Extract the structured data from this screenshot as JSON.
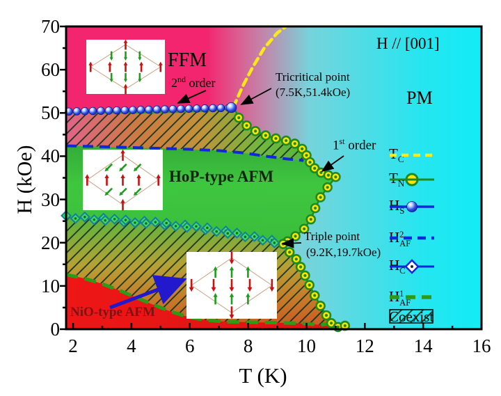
{
  "figure": {
    "title_hidden": ""
  },
  "axes": {
    "xlabel": "T (K)",
    "ylabel": "H (kOe)",
    "x_ticks": [
      "2",
      "4",
      "6",
      "8",
      "10",
      "12",
      "14",
      "16"
    ],
    "y_ticks": [
      "70",
      "60",
      "50",
      "40",
      "30",
      "20",
      "10",
      "0"
    ],
    "x_range": [
      1.76,
      16
    ],
    "y_range": [
      0,
      70
    ]
  },
  "labels": {
    "field_direction": "H // [001]",
    "ffm": "FFM",
    "pm": "PM",
    "hop": "HoP-type AFM",
    "nio": "NiO-type AFM",
    "order2_num": "2",
    "order2_sup": "nd",
    "order2_rest": " order",
    "order1_num": "1",
    "order1_sup": "st",
    "order1_rest": " order"
  },
  "annotations": {
    "tricritical": {
      "line1": "Tricritical point",
      "line2": "(7.5K,51.4kOe)",
      "point_T_K": 7.5,
      "point_H_kOe": 51.4
    },
    "triple": {
      "line1": "Triple point",
      "line2": "(9.2K,19.7kOe)",
      "point_T_K": 9.2,
      "point_H_kOe": 19.7
    }
  },
  "legend": {
    "items": [
      {
        "id": "tc",
        "main": "T",
        "sub": "C",
        "sup": ""
      },
      {
        "id": "tn",
        "main": "T",
        "sub": "N",
        "sup": ""
      },
      {
        "id": "hs",
        "main": "H",
        "sub": "S",
        "sup": ""
      },
      {
        "id": "haf2",
        "main": "H",
        "sub": "AF",
        "sup": "2"
      },
      {
        "id": "hc",
        "main": "H",
        "sub": "C",
        "sup": ""
      },
      {
        "id": "haf1",
        "main": "H",
        "sub": "AF",
        "sup": "1"
      },
      {
        "id": "coexist",
        "main": "Coexist",
        "sub": "",
        "sup": ""
      }
    ]
  },
  "colors": {
    "ffm_pink": "#f2256e",
    "pm_cyan": "#14ecf6",
    "hop_green": "#3fc63f",
    "nio_red": "#ee1515",
    "tc_yellow": "#ffe81a",
    "blue_line": "#1126dd",
    "tn_green": "#1f8a1f",
    "haf1_green": "#2f9a18",
    "marker_yellow": "#ffe400",
    "diamond_green": "#3fdf5a"
  },
  "chart_data": {
    "type": "line",
    "title": "Magnetic phase diagram, H // [001]",
    "xlabel": "T (K)",
    "ylabel": "H (kOe)",
    "xlim": [
      1.76,
      16
    ],
    "ylim": [
      0,
      70
    ],
    "grid": false,
    "legend_position": "right",
    "phases": [
      "FFM",
      "PM",
      "HoP-type AFM",
      "NiO-type AFM",
      "Coexist (hatched)"
    ],
    "series": [
      {
        "name": "H_S",
        "style": "blue line, sphere markers",
        "points": [
          [
            1.76,
            50.3
          ],
          [
            3,
            50.3
          ],
          [
            4.5,
            50.3
          ],
          [
            5.5,
            50.4
          ],
          [
            6.3,
            50.6
          ],
          [
            6.9,
            50.8
          ],
          [
            7.5,
            51.4
          ]
        ]
      },
      {
        "name": "T_C",
        "style": "yellow dashed",
        "points": [
          [
            7.5,
            51.4
          ],
          [
            7.8,
            56
          ],
          [
            8.15,
            60.5
          ],
          [
            8.55,
            65
          ],
          [
            9.0,
            68.5
          ],
          [
            9.3,
            70
          ]
        ]
      },
      {
        "name": "H_AF2",
        "style": "blue dashed",
        "points": [
          [
            1.76,
            42.4
          ],
          [
            3,
            42.2
          ],
          [
            4,
            42.0
          ],
          [
            5,
            41.8
          ],
          [
            6,
            41.6
          ],
          [
            7,
            41.3
          ],
          [
            7.8,
            40.8
          ],
          [
            8.6,
            40.0
          ],
          [
            9.3,
            39.4
          ],
          [
            9.9,
            39.0
          ]
        ]
      },
      {
        "name": "T_N_upper",
        "style": "green line, yellow circle markers",
        "points": [
          [
            7.5,
            51.4
          ],
          [
            7.68,
            48.9
          ],
          [
            7.95,
            47.1
          ],
          [
            8.25,
            45.8
          ],
          [
            8.6,
            44.8
          ],
          [
            8.95,
            44.1
          ],
          [
            9.3,
            43.6
          ],
          [
            9.6,
            42.9
          ],
          [
            9.85,
            41.7
          ],
          [
            10.0,
            40.2
          ],
          [
            10.12,
            38.6
          ],
          [
            10.28,
            37.2
          ],
          [
            10.5,
            36.2
          ],
          [
            10.75,
            35.6
          ],
          [
            11.0,
            35.2
          ],
          [
            10.72,
            32.8
          ],
          [
            10.48,
            30.5
          ],
          [
            10.3,
            28.0
          ],
          [
            10.15,
            25.4
          ],
          [
            9.92,
            23.2
          ],
          [
            9.62,
            21.5
          ],
          [
            9.35,
            20.3
          ],
          [
            9.2,
            19.7
          ]
        ]
      },
      {
        "name": "T_N_lower",
        "style": "green line, yellow circle markers",
        "points": [
          [
            9.2,
            19.7
          ],
          [
            9.42,
            17.8
          ],
          [
            9.65,
            16.2
          ],
          [
            9.8,
            14.4
          ],
          [
            9.95,
            12.4
          ],
          [
            10.1,
            10.2
          ],
          [
            10.28,
            7.8
          ],
          [
            10.48,
            5.4
          ],
          [
            10.68,
            3.2
          ],
          [
            10.85,
            1.4
          ],
          [
            11.08,
            0.5
          ],
          [
            11.32,
            0.8
          ]
        ]
      },
      {
        "name": "H_C",
        "style": "green diamond markers",
        "points": [
          [
            1.76,
            26.0
          ],
          [
            2.4,
            25.7
          ],
          [
            3.1,
            25.4
          ],
          [
            3.8,
            25.0
          ],
          [
            4.5,
            24.7
          ],
          [
            5.2,
            24.3
          ],
          [
            5.9,
            23.8
          ],
          [
            6.6,
            23.2
          ],
          [
            7.3,
            22.4
          ],
          [
            7.9,
            21.6
          ],
          [
            8.5,
            20.8
          ],
          [
            8.9,
            20.2
          ],
          [
            9.2,
            19.7
          ]
        ]
      },
      {
        "name": "H_AF1",
        "style": "green dashed",
        "points": [
          [
            1.76,
            12.6
          ],
          [
            2.3,
            11.9
          ],
          [
            2.9,
            10.7
          ],
          [
            3.5,
            9.2
          ],
          [
            4.1,
            7.5
          ],
          [
            4.7,
            5.8
          ],
          [
            5.3,
            4.2
          ],
          [
            5.9,
            2.9
          ],
          [
            6.5,
            2.1
          ],
          [
            7.3,
            1.7
          ],
          [
            8.2,
            1.6
          ],
          [
            9.1,
            1.5
          ],
          [
            9.9,
            1.3
          ],
          [
            10.5,
            1.0
          ],
          [
            10.85,
            1.4
          ]
        ]
      }
    ]
  }
}
